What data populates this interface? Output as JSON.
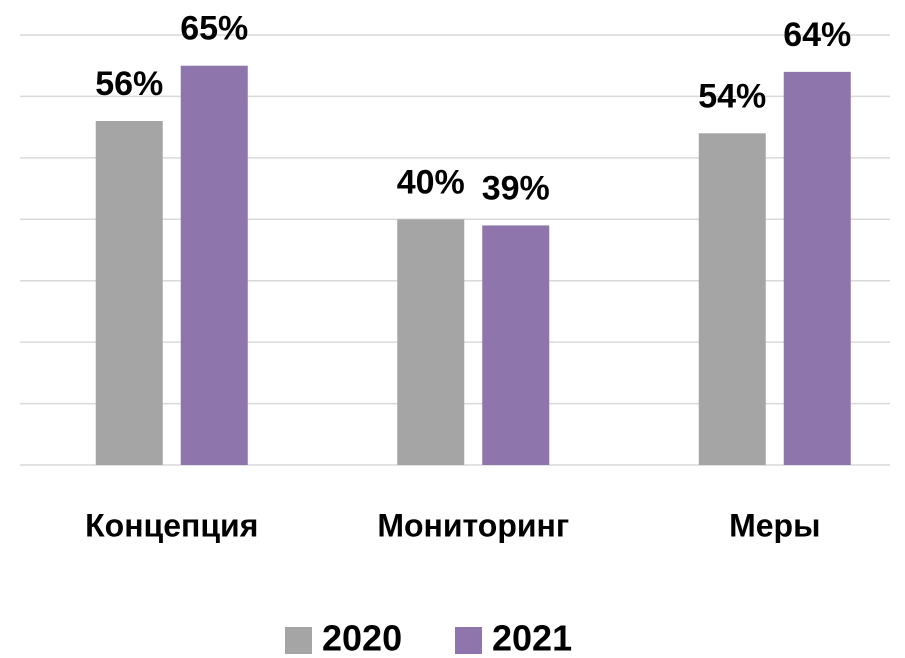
{
  "chart_data": {
    "type": "bar",
    "categories": [
      "Концепция",
      "Мониторинг",
      "Меры"
    ],
    "series": [
      {
        "name": "2020",
        "color": "#a5a5a5",
        "values": [
          56,
          40,
          54
        ],
        "value_labels": [
          "56%",
          "40%",
          "54%"
        ]
      },
      {
        "name": "2021",
        "color": "#8e75ab",
        "values": [
          65,
          39,
          64
        ],
        "value_labels": [
          "65%",
          "39%",
          "64%"
        ]
      }
    ],
    "ylim": [
      0,
      70
    ],
    "yticks": [
      0,
      10,
      20,
      30,
      40,
      50,
      60,
      70
    ],
    "grid": true,
    "legend": "bottom"
  }
}
